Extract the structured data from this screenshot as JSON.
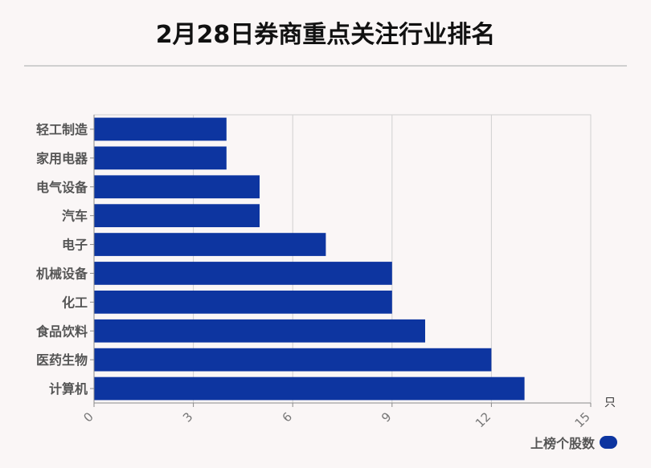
{
  "title": "2月28日券商重点关注行业排名",
  "colors": {
    "bar": "#0d35a0",
    "grid": "#d0d0d0",
    "axis": "#8a8a8a"
  },
  "chart_data": {
    "type": "bar",
    "orientation": "horizontal",
    "title": "2月28日券商重点关注行业排名",
    "categories": [
      "轻工制造",
      "家用电器",
      "电气设备",
      "汽车",
      "电子",
      "机械设备",
      "化工",
      "食品饮料",
      "医药生物",
      "计算机"
    ],
    "series": [
      {
        "name": "上榜个股数",
        "values": [
          4,
          4,
          5,
          5,
          7,
          9,
          9,
          10,
          12,
          13
        ]
      }
    ],
    "xlim": [
      0,
      15
    ],
    "xticks": [
      "0",
      "3",
      "6",
      "9",
      "12",
      "15"
    ],
    "xunit": "只",
    "grid": true,
    "legend_position": "bottom-right"
  }
}
